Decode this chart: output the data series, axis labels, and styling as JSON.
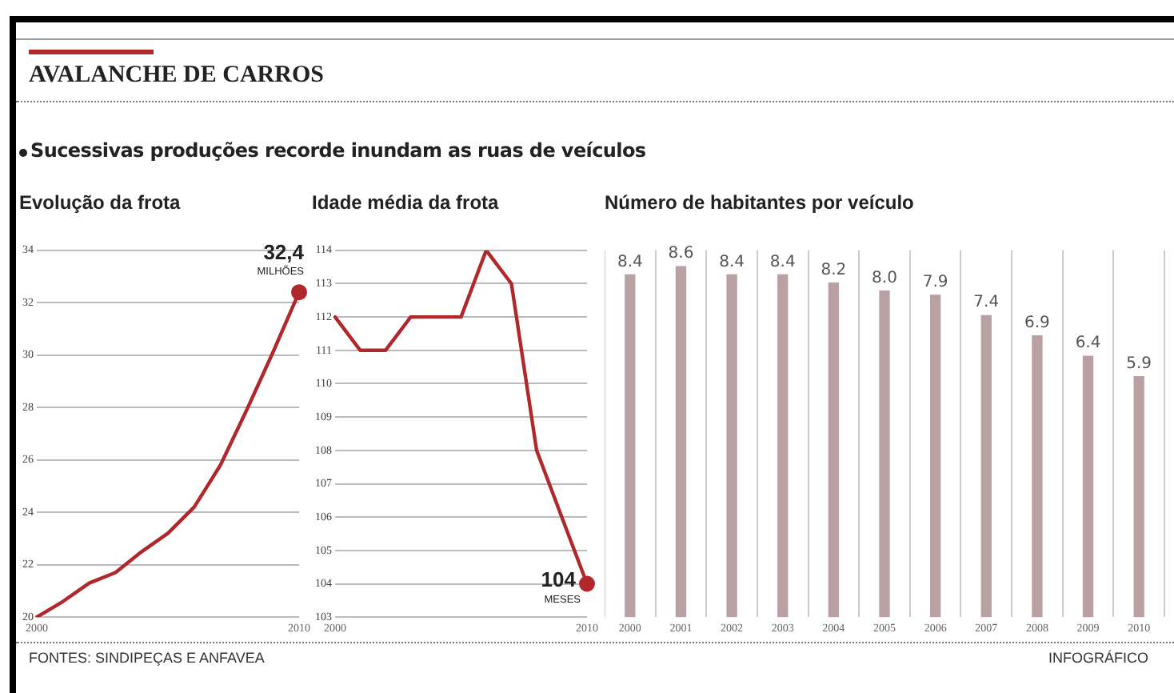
{
  "chart_data": [
    {
      "type": "other",
      "title": "AVALANCHE DE CARROS",
      "subtitle": "Sucessivas produções recorde inundam as ruas de veículos",
      "annotations": [
        "FONTES: SINDIPEÇAS E ANFAVEA",
        "INFOGRÁFICO"
      ]
    },
    {
      "type": "line",
      "title": "Evolução da frota",
      "categories": [
        "2000",
        null,
        null,
        null,
        null,
        null,
        null,
        null,
        null,
        null,
        "2010"
      ],
      "series": [
        {
          "color": "#b0282c",
          "values": [
            20.0,
            20.6,
            21.3,
            21.7,
            22.5,
            23.2,
            24.2,
            25.8,
            27.9,
            30.1,
            32.4
          ]
        }
      ],
      "ylim": [
        20,
        34
      ],
      "yticks": [
        20,
        22,
        24,
        26,
        28,
        30,
        32,
        34
      ],
      "grid": "y",
      "annotations": [
        "32,4",
        "MILHÕES"
      ]
    },
    {
      "type": "line",
      "title": "Idade média da frota",
      "categories": [
        "2000",
        null,
        null,
        null,
        null,
        null,
        null,
        null,
        null,
        null,
        "2010"
      ],
      "series": [
        {
          "color": "#b0282c",
          "values": [
            112,
            111,
            111,
            112,
            112,
            112,
            114,
            113,
            108,
            106,
            104
          ]
        }
      ],
      "ylim": [
        103,
        114
      ],
      "yticks": [
        103,
        104,
        105,
        106,
        107,
        108,
        109,
        110,
        111,
        112,
        113,
        114
      ],
      "grid": "y",
      "annotations": [
        "104",
        "MESES"
      ]
    },
    {
      "type": "bar",
      "title": "Número de habitantes por veículo",
      "categories": [
        "2000",
        "2001",
        "2002",
        "2003",
        "2004",
        "2005",
        "2006",
        "2007",
        "2008",
        "2009",
        "2010"
      ],
      "series": [
        {
          "color": "#b9a0a3",
          "values": [
            8.4,
            8.6,
            8.4,
            8.4,
            8.2,
            8.0,
            7.9,
            7.4,
            6.9,
            6.4,
            5.9
          ],
          "value_labels": [
            "8.4",
            "8.6",
            "8.4",
            "8.4",
            "8.2",
            "8.0",
            "7.9",
            "7.4",
            "6.9",
            "6.4",
            "5.9"
          ]
        }
      ],
      "grid": "x"
    }
  ]
}
